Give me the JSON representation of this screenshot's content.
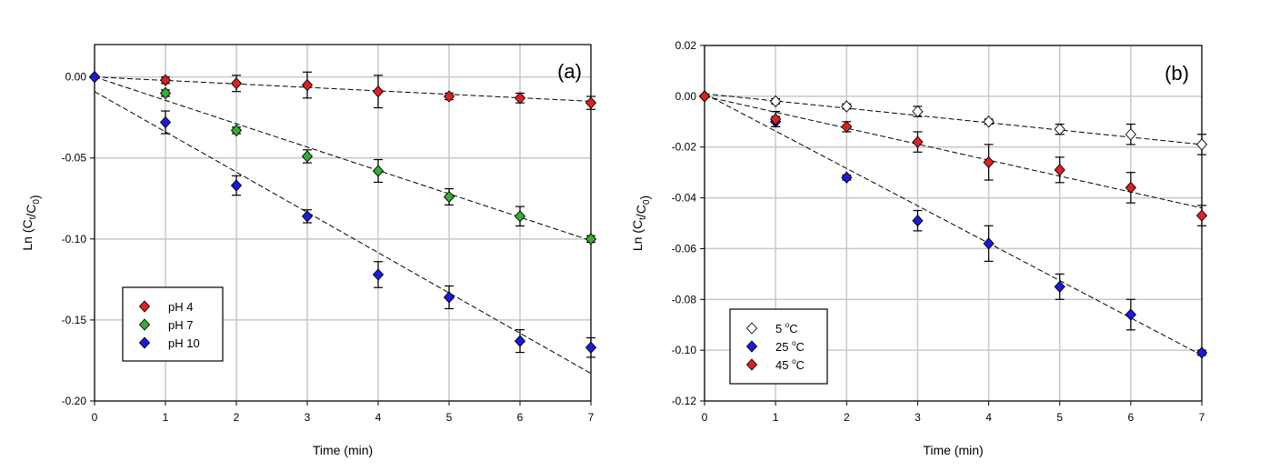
{
  "chart_data": [
    {
      "type": "scatter",
      "panel_label": "(a)",
      "xlabel": "Time (min)",
      "ylabel": {
        "base": "Ln (C",
        "sub1": "t",
        "mid": "/C",
        "sub2": "0",
        "end": ")"
      },
      "xlim": [
        0,
        7
      ],
      "ylim": [
        -0.2,
        0.02
      ],
      "xticks": [
        0,
        1,
        2,
        3,
        4,
        5,
        6,
        7
      ],
      "yticks": [
        0.0,
        -0.05,
        -0.1,
        -0.15,
        -0.2
      ],
      "ytick_labels": [
        "0.00",
        "-0.05",
        "-0.10",
        "-0.15",
        "-0.20"
      ],
      "grid": true,
      "legend_placement": "bottom-left",
      "x": [
        0,
        1,
        2,
        3,
        4,
        5,
        6,
        7
      ],
      "series": [
        {
          "name": "pH 4",
          "color": "#e02020",
          "values": [
            0,
            -0.002,
            -0.004,
            -0.005,
            -0.009,
            -0.012,
            -0.013,
            -0.016
          ],
          "errors": [
            0,
            0.002,
            0.005,
            0.008,
            0.01,
            0.002,
            0.003,
            0.004
          ],
          "fit": [
            0,
            -0.015
          ]
        },
        {
          "name": "pH 7",
          "color": "#30b030",
          "values": [
            0,
            -0.01,
            -0.033,
            -0.049,
            -0.058,
            -0.074,
            -0.086,
            -0.1
          ],
          "errors": [
            0,
            0.002,
            0.002,
            0.004,
            0.007,
            0.005,
            0.006,
            0.002
          ],
          "fit": [
            0,
            -0.101
          ]
        },
        {
          "name": "pH 10",
          "color": "#1a1ae0",
          "values": [
            0,
            -0.028,
            -0.067,
            -0.086,
            -0.122,
            -0.136,
            -0.163,
            -0.167
          ],
          "errors": [
            0,
            0.007,
            0.006,
            0.004,
            0.008,
            0.007,
            0.007,
            0.006
          ],
          "fit": [
            -0.009,
            -0.183
          ]
        }
      ]
    },
    {
      "type": "scatter",
      "panel_label": "(b)",
      "xlabel": "Time (min)",
      "ylabel": {
        "base": "Ln (C",
        "sub1": "t",
        "mid": "/C",
        "sub2": "0",
        "end": ")"
      },
      "xlim": [
        0,
        7
      ],
      "ylim": [
        -0.12,
        0.02
      ],
      "xticks": [
        0,
        1,
        2,
        3,
        4,
        5,
        6,
        7
      ],
      "yticks": [
        0.02,
        0.0,
        -0.02,
        -0.04,
        -0.06,
        -0.08,
        -0.1,
        -0.12
      ],
      "ytick_labels": [
        "0.02",
        "0.00",
        "-0.02",
        "-0.04",
        "-0.06",
        "-0.08",
        "-0.10",
        "-0.12"
      ],
      "grid": true,
      "legend_placement": "bottom-left",
      "x": [
        0,
        1,
        2,
        3,
        4,
        5,
        6,
        7
      ],
      "series": [
        {
          "name": "5 °C",
          "label_num": "5 ",
          "label_unit": "C",
          "color": "#ffffff",
          "values": [
            0,
            -0.002,
            -0.004,
            -0.006,
            -0.01,
            -0.013,
            -0.015,
            -0.019
          ],
          "errors": [
            0,
            0.001,
            0.001,
            0.002,
            0.001,
            0.002,
            0.004,
            0.004
          ],
          "fit": [
            0.001,
            -0.019
          ]
        },
        {
          "name": "25 °C",
          "label_num": "25 ",
          "label_unit": "C",
          "color": "#1a1ae0",
          "values": [
            0,
            -0.01,
            -0.032,
            -0.049,
            -0.058,
            -0.075,
            -0.086,
            -0.101
          ],
          "errors": [
            0,
            0.002,
            0.001,
            0.004,
            0.007,
            0.005,
            0.006,
            0.001
          ],
          "fit": [
            0.001,
            -0.102
          ]
        },
        {
          "name": "45 °C",
          "label_num": "45 ",
          "label_unit": "C",
          "color": "#e02020",
          "values": [
            0,
            -0.009,
            -0.012,
            -0.018,
            -0.026,
            -0.029,
            -0.036,
            -0.047
          ],
          "errors": [
            0,
            0.003,
            0.002,
            0.004,
            0.007,
            0.005,
            0.006,
            0.004
          ],
          "fit": [
            0,
            -0.044
          ]
        }
      ]
    }
  ]
}
